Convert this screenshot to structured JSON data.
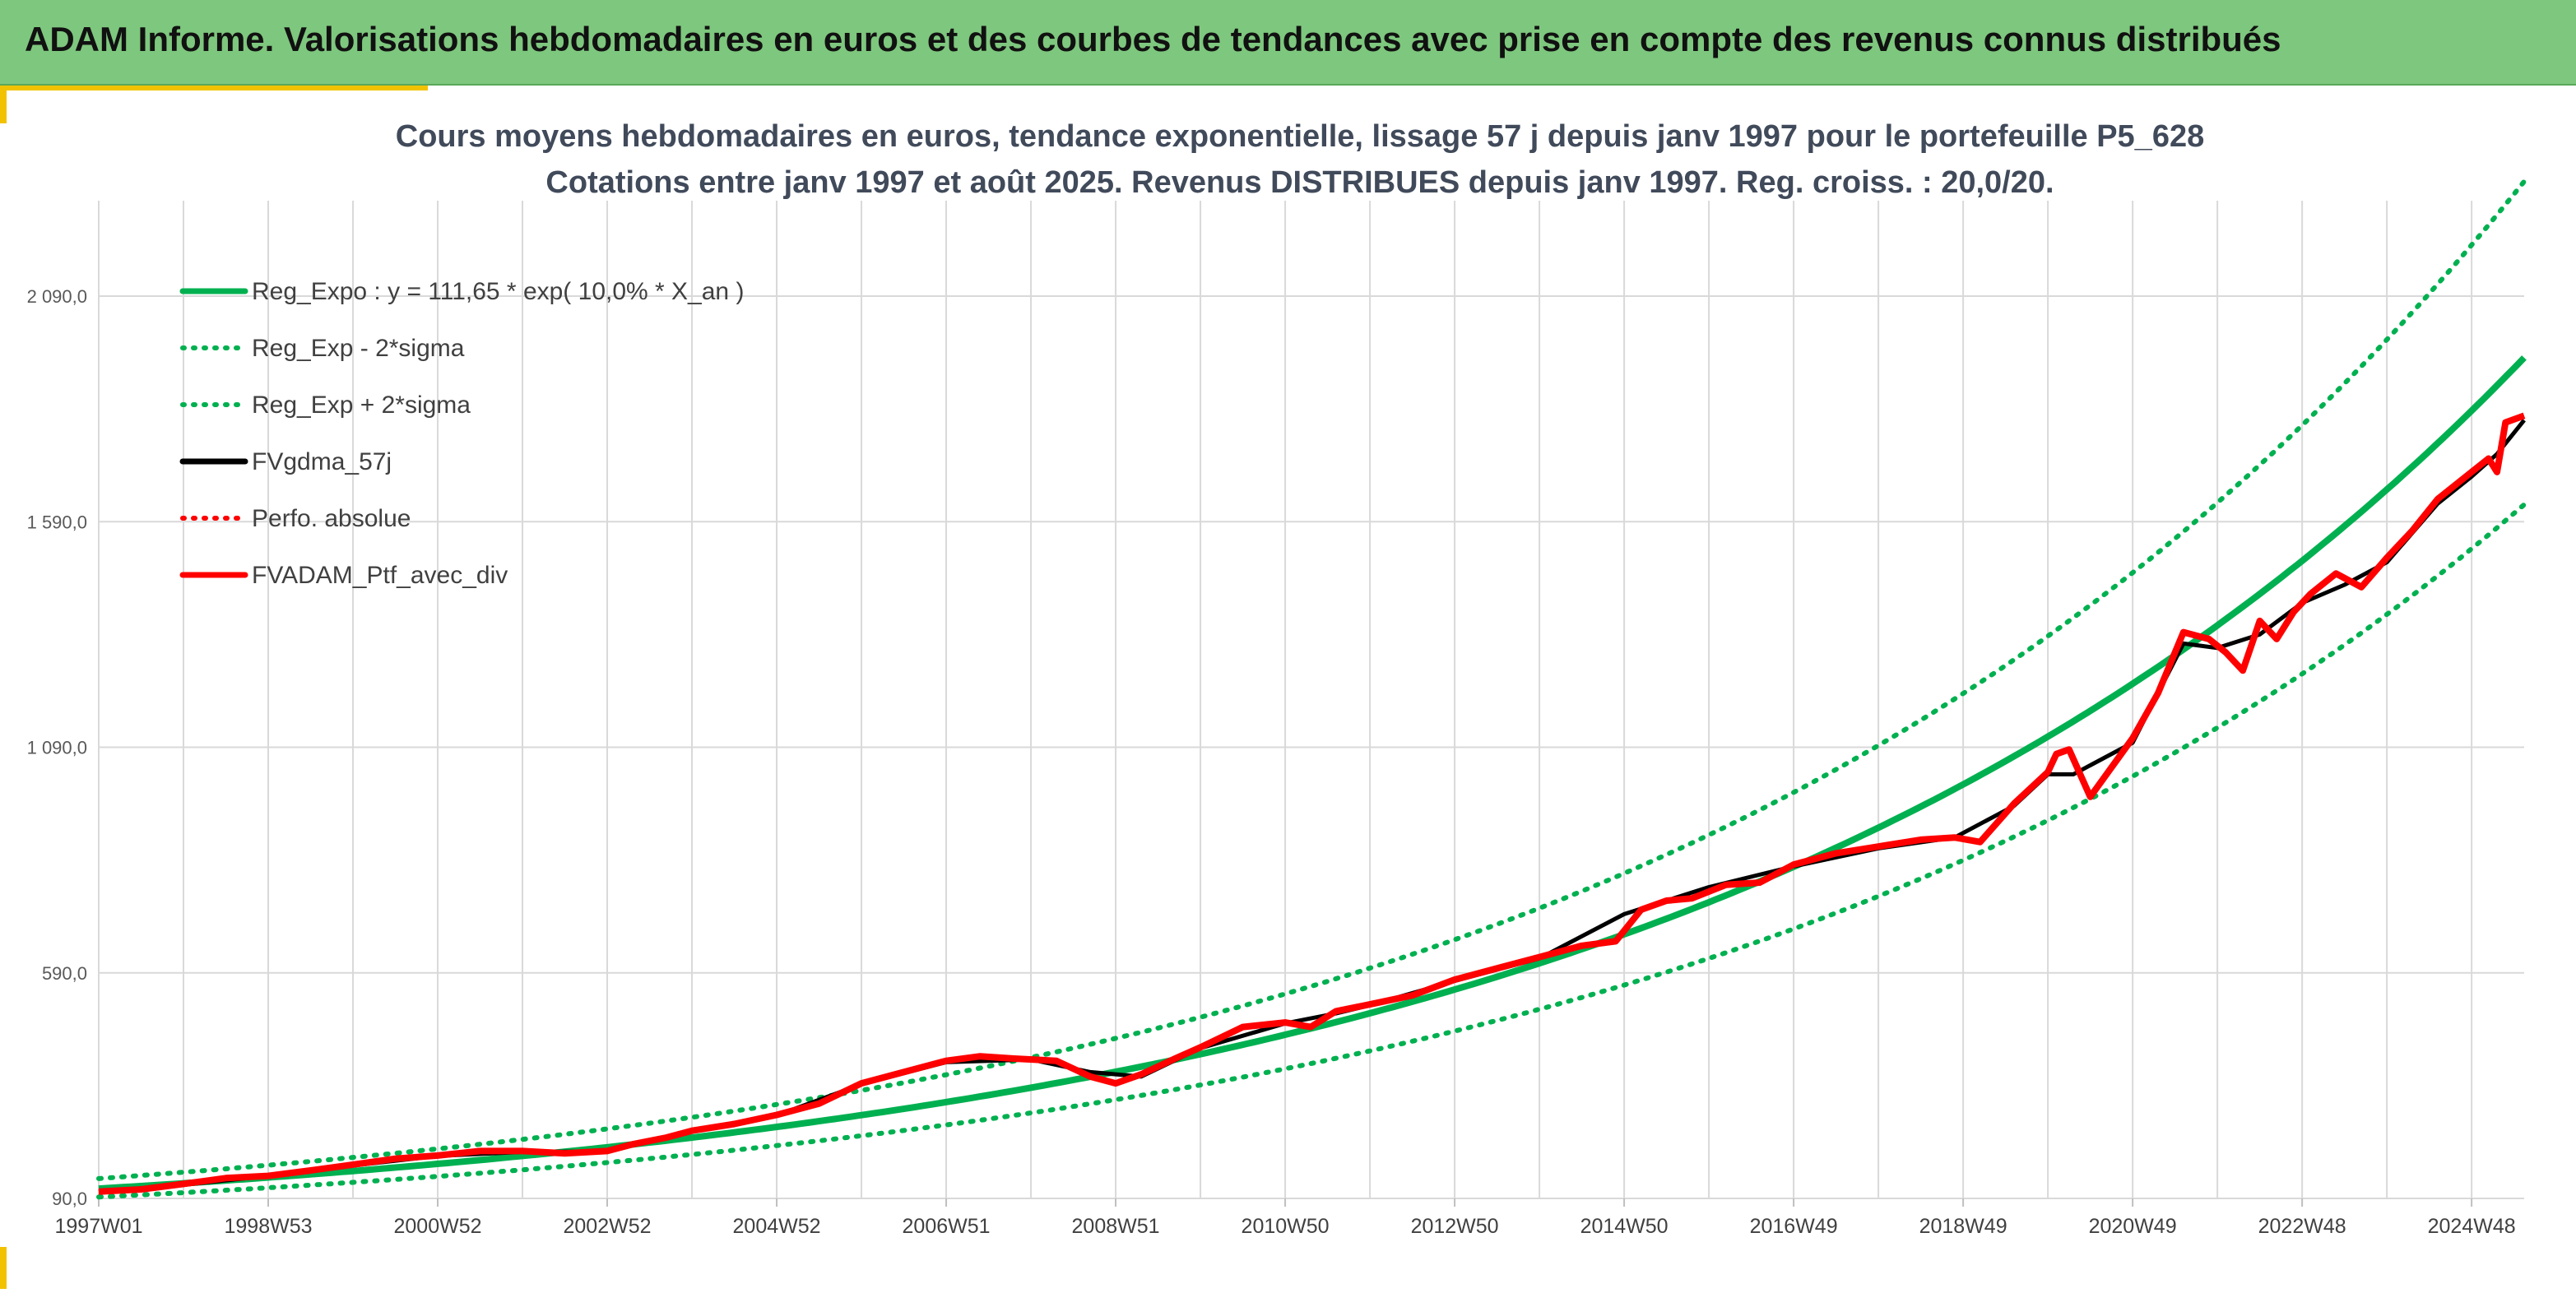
{
  "header": {
    "title": "ADAM Informe. Valorisations hebdomadaires en euros et des courbes de tendances avec prise en compte des revenus connus distribués"
  },
  "colors": {
    "header_bg": "#7ec77e",
    "regression": "#00b050",
    "smooth": "#000000",
    "portfolio": "#ff0000",
    "grid": "#d9d9d9"
  },
  "chart_data": {
    "type": "line",
    "title_line1": "Cours moyens hebdomadaires en euros, tendance exponentielle, lissage 57 j depuis janv 1997 pour le portefeuille P5_628",
    "title_line2": "Cotations entre janv 1997 et août 2025. Revenus DISTRIBUES depuis janv 1997. Reg. croiss. : 20,0/20.",
    "y_ticks": [
      {
        "value": 90,
        "label": "90,0"
      },
      {
        "value": 590,
        "label": "590,0"
      },
      {
        "value": 1090,
        "label": "1 090,0"
      },
      {
        "value": 1590,
        "label": "1 590,0"
      },
      {
        "value": 2090,
        "label": "2 090,0"
      }
    ],
    "ylim": [
      90,
      2400
    ],
    "x_start": 1997.0,
    "x_end": 2025.62,
    "x_ticks": [
      {
        "x": 1997.0,
        "label": "1997W01"
      },
      {
        "x": 1999.0,
        "label": "1998W53"
      },
      {
        "x": 2001.0,
        "label": "2000W52"
      },
      {
        "x": 2003.0,
        "label": "2002W52"
      },
      {
        "x": 2005.0,
        "label": "2004W52"
      },
      {
        "x": 2007.0,
        "label": "2006W51"
      },
      {
        "x": 2009.0,
        "label": "2008W51"
      },
      {
        "x": 2011.0,
        "label": "2010W50"
      },
      {
        "x": 2013.0,
        "label": "2012W50"
      },
      {
        "x": 2015.0,
        "label": "2014W50"
      },
      {
        "x": 2017.0,
        "label": "2016W49"
      },
      {
        "x": 2019.0,
        "label": "2018W49"
      },
      {
        "x": 2021.0,
        "label": "2020W49"
      },
      {
        "x": 2023.0,
        "label": "2022W48"
      },
      {
        "x": 2025.0,
        "label": "2024W48"
      }
    ],
    "regression": {
      "a": 111.65,
      "rate": 0.1,
      "band_factor": 1.2
    },
    "legend": [
      {
        "label": "Reg_Expo : y = 111,65 * exp( 10,0% *  X_an )",
        "style": "solid",
        "color": "#00b050"
      },
      {
        "label": "Reg_Exp - 2*sigma",
        "style": "dotted",
        "color": "#00b050"
      },
      {
        "label": "Reg_Exp + 2*sigma",
        "style": "dotted",
        "color": "#00b050"
      },
      {
        "label": "FVgdma_57j",
        "style": "solid",
        "color": "#000000"
      },
      {
        "label": "Perfo. absolue",
        "style": "dotted",
        "color": "#ff0000"
      },
      {
        "label": "FVADAM_Ptf_avec_div",
        "style": "solid",
        "color": "#ff0000"
      }
    ],
    "series": [
      {
        "name": "FVADAM_Ptf_avec_div",
        "x": [
          1997.0,
          1997.5,
          1998.0,
          1998.5,
          1999.0,
          1999.5,
          2000.0,
          2000.5,
          2001.0,
          2001.5,
          2002.0,
          2002.5,
          2003.0,
          2003.3,
          2003.7,
          2004.0,
          2004.5,
          2005.0,
          2005.5,
          2006.0,
          2006.5,
          2007.0,
          2007.4,
          2007.8,
          2008.3,
          2008.7,
          2009.0,
          2009.3,
          2009.7,
          2010.0,
          2010.5,
          2011.0,
          2011.3,
          2011.6,
          2012.0,
          2012.5,
          2013.0,
          2013.5,
          2014.0,
          2014.5,
          2014.9,
          2015.2,
          2015.5,
          2015.8,
          2016.2,
          2016.6,
          2017.0,
          2017.5,
          2018.0,
          2018.5,
          2018.9,
          2019.2,
          2019.6,
          2020.0,
          2020.1,
          2020.25,
          2020.5,
          2021.0,
          2021.3,
          2021.6,
          2021.9,
          2022.1,
          2022.3,
          2022.5,
          2022.7,
          2022.9,
          2023.1,
          2023.4,
          2023.7,
          2024.0,
          2024.3,
          2024.6,
          2025.0,
          2025.2,
          2025.3,
          2025.4,
          2025.62
        ],
        "values": [
          105,
          110,
          122,
          135,
          140,
          152,
          165,
          178,
          185,
          195,
          195,
          190,
          195,
          210,
          225,
          240,
          255,
          275,
          300,
          345,
          370,
          395,
          405,
          400,
          395,
          360,
          345,
          365,
          400,
          425,
          470,
          480,
          470,
          505,
          520,
          540,
          575,
          600,
          625,
          650,
          660,
          730,
          750,
          755,
          785,
          790,
          830,
          855,
          870,
          885,
          890,
          880,
          965,
          1035,
          1075,
          1085,
          980,
          1110,
          1210,
          1345,
          1330,
          1300,
          1260,
          1370,
          1330,
          1390,
          1430,
          1475,
          1445,
          1510,
          1570,
          1640,
          1700,
          1730,
          1700,
          1810,
          1825
        ]
      },
      {
        "name": "FVgdma_57j",
        "x": [
          1997.0,
          1998.0,
          1999.0,
          2000.0,
          2001.0,
          2002.0,
          2003.0,
          2004.0,
          2005.0,
          2006.0,
          2007.0,
          2008.0,
          2008.7,
          2009.3,
          2010.0,
          2011.0,
          2011.6,
          2012.0,
          2013.0,
          2014.0,
          2015.0,
          2016.0,
          2017.0,
          2018.0,
          2018.9,
          2019.6,
          2020.0,
          2020.3,
          2021.0,
          2021.6,
          2022.0,
          2022.5,
          2023.0,
          2023.5,
          2024.0,
          2024.6,
          2025.0,
          2025.3,
          2025.62
        ],
        "values": [
          105,
          120,
          140,
          163,
          184,
          193,
          194,
          238,
          274,
          343,
          392,
          398,
          370,
          360,
          423,
          478,
          500,
          518,
          572,
          622,
          720,
          780,
          826,
          866,
          890,
          960,
          1030,
          1030,
          1100,
          1320,
          1310,
          1340,
          1410,
          1450,
          1500,
          1630,
          1690,
          1740,
          1815
        ]
      }
    ]
  }
}
